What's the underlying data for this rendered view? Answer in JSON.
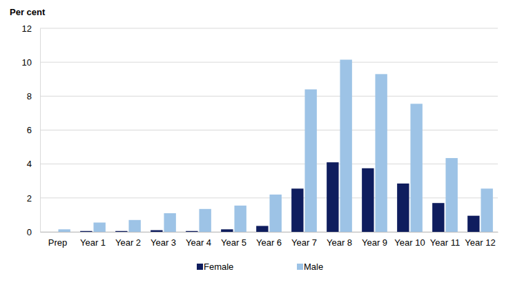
{
  "chart_data": {
    "type": "bar",
    "y_label": "Per cent",
    "categories": [
      "Prep",
      "Year 1",
      "Year 2",
      "Year 3",
      "Year 4",
      "Year 5",
      "Year 6",
      "Year 7",
      "Year 8",
      "Year 9",
      "Year 10",
      "Year 11",
      "Year 12"
    ],
    "series": [
      {
        "name": "Female",
        "color": "#0f1d5e",
        "values": [
          0,
          0.05,
          0.05,
          0.1,
          0.05,
          0.15,
          0.35,
          2.55,
          4.1,
          3.75,
          2.85,
          1.7,
          0.95
        ]
      },
      {
        "name": "Male",
        "color": "#9dc3e6",
        "values": [
          0.15,
          0.55,
          0.7,
          1.1,
          1.35,
          1.55,
          2.2,
          8.4,
          10.15,
          9.3,
          7.55,
          4.35,
          2.55
        ]
      }
    ],
    "ylim": [
      0,
      12
    ],
    "yticks": [
      0,
      2,
      4,
      6,
      8,
      10,
      12
    ],
    "grid": true,
    "legend": "bottom"
  }
}
